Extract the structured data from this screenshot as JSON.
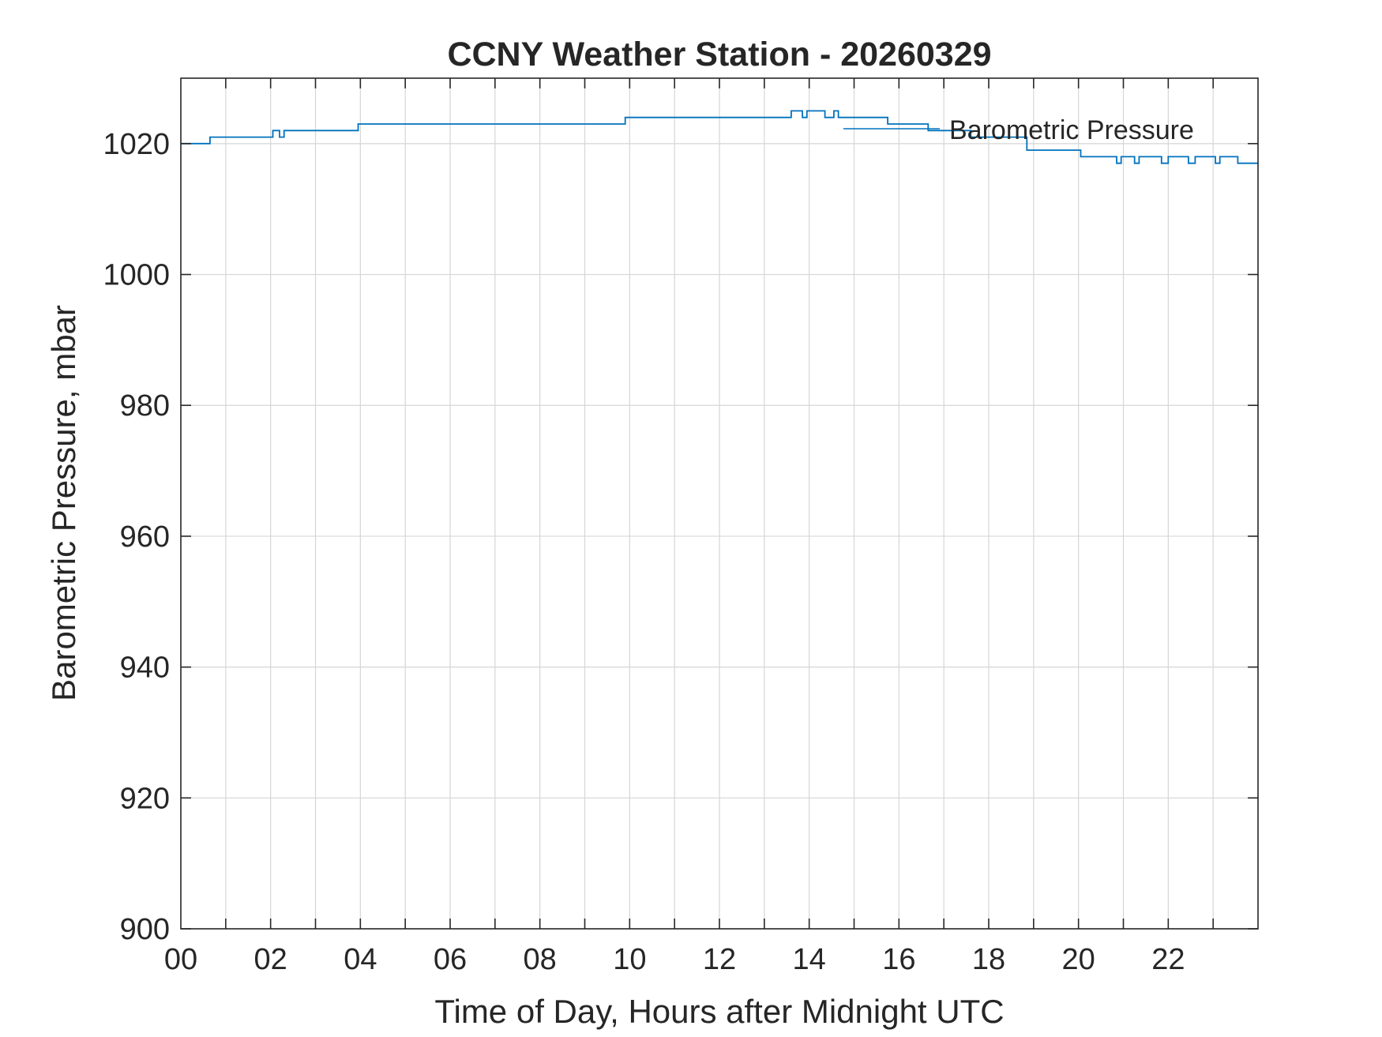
{
  "chart_data": {
    "type": "line",
    "title": "CCNY Weather Station - 20260329",
    "xlabel": "Time of Day, Hours after Midnight UTC",
    "ylabel": "Barometric Pressure, mbar",
    "xlim": [
      0,
      24
    ],
    "ylim": [
      900,
      1030
    ],
    "xticks": [
      0,
      2,
      4,
      6,
      8,
      10,
      12,
      14,
      16,
      18,
      20,
      22
    ],
    "xtick_labels": [
      "00",
      "02",
      "04",
      "06",
      "08",
      "10",
      "12",
      "14",
      "16",
      "18",
      "20",
      "22"
    ],
    "yticks": [
      900,
      920,
      940,
      960,
      980,
      1000,
      1020
    ],
    "yticks_labels": [
      "900",
      "920",
      "940",
      "960",
      "980",
      "1000",
      "1020"
    ],
    "grid": true,
    "legend_position": "top-right",
    "series": [
      {
        "name": "Barometric Pressure",
        "color": "#0072BD",
        "x": [
          0,
          0.65,
          0.65,
          2.05,
          2.05,
          2.2,
          2.2,
          2.3,
          2.3,
          3.95,
          3.95,
          9.9,
          9.9,
          13.6,
          13.6,
          13.85,
          13.85,
          13.95,
          13.95,
          14.35,
          14.35,
          14.55,
          14.55,
          14.65,
          14.65,
          15.75,
          15.75,
          16.65,
          16.65,
          17.6,
          17.6,
          18.85,
          18.85,
          20.05,
          20.05,
          20.85,
          20.85,
          20.95,
          20.95,
          21.25,
          21.25,
          21.35,
          21.35,
          21.85,
          21.85,
          22.0,
          22.0,
          22.45,
          22.45,
          22.6,
          22.6,
          23.05,
          23.05,
          23.15,
          23.15,
          23.55,
          23.55,
          24.0
        ],
        "y": [
          1020,
          1020,
          1021,
          1021,
          1022,
          1022,
          1021,
          1021,
          1022,
          1022,
          1023,
          1023,
          1024,
          1024,
          1025,
          1025,
          1024,
          1024,
          1025,
          1025,
          1024,
          1024,
          1025,
          1025,
          1024,
          1024,
          1023,
          1023,
          1022,
          1022,
          1021,
          1021,
          1019,
          1019,
          1018,
          1018,
          1017,
          1017,
          1018,
          1018,
          1017,
          1017,
          1018,
          1018,
          1017,
          1017,
          1018,
          1018,
          1017,
          1017,
          1018,
          1018,
          1017,
          1017,
          1018,
          1018,
          1017,
          1017
        ]
      }
    ]
  }
}
